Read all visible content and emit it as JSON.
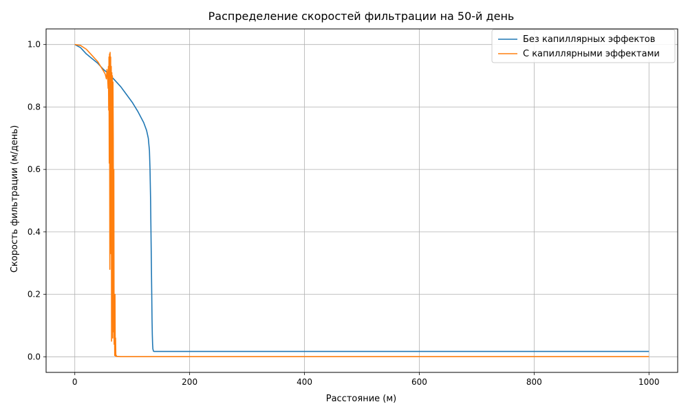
{
  "chart_data": {
    "type": "line",
    "title": "Распределение скоростей фильтрации на 50-й день",
    "xlabel": "Расстояние (м)",
    "ylabel": "Скорость фильтрации (м/день)",
    "xlim": [
      -50,
      1050
    ],
    "ylim": [
      -0.05,
      1.05
    ],
    "xticks": [
      0,
      200,
      400,
      600,
      800,
      1000
    ],
    "yticks": [
      0.0,
      0.2,
      0.4,
      0.6,
      0.8,
      1.0
    ],
    "xtick_labels": [
      "0",
      "200",
      "400",
      "600",
      "800",
      "1000"
    ],
    "ytick_labels": [
      "0.0",
      "0.2",
      "0.4",
      "0.6",
      "0.8",
      "1.0"
    ],
    "grid": true,
    "legend_position": "top-right",
    "series": [
      {
        "name": "Без капиллярных эффектов",
        "color": "#1f77b4",
        "x": [
          0,
          10,
          20,
          30,
          40,
          50,
          60,
          70,
          80,
          90,
          100,
          110,
          120,
          125,
          128,
          130,
          131,
          132,
          133,
          134,
          134.5,
          135,
          135.5,
          136,
          137,
          138,
          140,
          150,
          200,
          300,
          400,
          500,
          600,
          700,
          800,
          900,
          1000
        ],
        "y": [
          1.0,
          0.99,
          0.97,
          0.955,
          0.94,
          0.92,
          0.905,
          0.885,
          0.865,
          0.84,
          0.815,
          0.785,
          0.75,
          0.725,
          0.7,
          0.66,
          0.6,
          0.5,
          0.35,
          0.2,
          0.12,
          0.07,
          0.04,
          0.025,
          0.018,
          0.017,
          0.017,
          0.017,
          0.017,
          0.017,
          0.017,
          0.017,
          0.017,
          0.017,
          0.017,
          0.017,
          0.017
        ]
      },
      {
        "name": "С капиллярными эффектами",
        "color": "#ff7f0e",
        "x": [
          0,
          10,
          20,
          30,
          40,
          45,
          50,
          53,
          55,
          56,
          57,
          58,
          58.5,
          59,
          59.5,
          60,
          60.5,
          61,
          61.5,
          62,
          62.5,
          63,
          63.5,
          64,
          64.5,
          65,
          65.5,
          66,
          66.5,
          67,
          67.5,
          68,
          68.5,
          69,
          69.5,
          70,
          70.5,
          71,
          71.5,
          72,
          73,
          75,
          80,
          100,
          200,
          400,
          600,
          800,
          1000
        ],
        "y": [
          1.0,
          0.997,
          0.985,
          0.965,
          0.945,
          0.93,
          0.915,
          0.905,
          0.89,
          0.92,
          0.9,
          0.86,
          0.93,
          0.79,
          0.96,
          0.62,
          0.97,
          0.28,
          0.975,
          0.75,
          0.96,
          0.33,
          0.93,
          0.05,
          0.91,
          0.43,
          0.9,
          0.06,
          0.88,
          0.7,
          0.08,
          0.6,
          0.04,
          0.15,
          0.004,
          0.2,
          0.003,
          0.06,
          0.002,
          0.005,
          0.001,
          0.001,
          0.0005,
          0.0005,
          0.0005,
          0.0005,
          0.0005,
          0.0005,
          0.0005
        ]
      }
    ]
  }
}
